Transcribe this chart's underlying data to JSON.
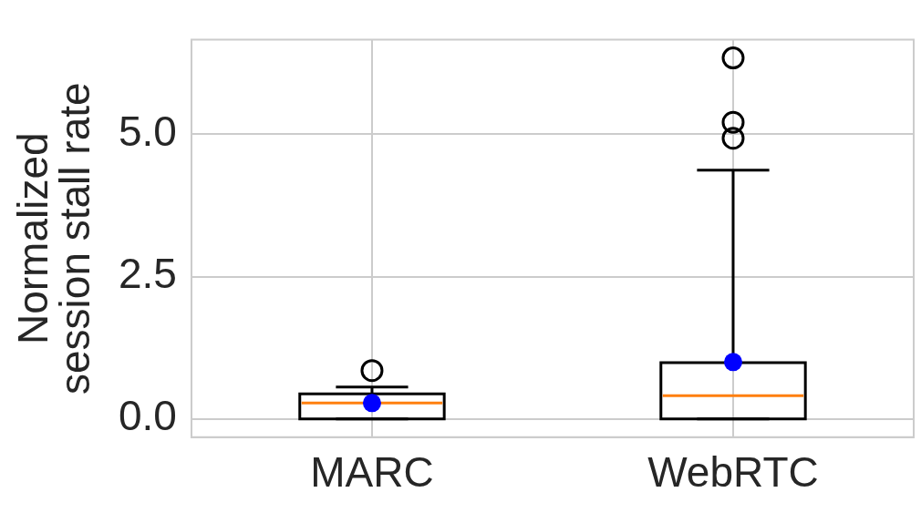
{
  "chart_data": {
    "type": "box",
    "ylabel": "Normalized\nsession stall rate",
    "categories": [
      "MARC",
      "WebRTC"
    ],
    "boxes": [
      {
        "low": 0,
        "q1": 0,
        "median": 0.28,
        "q3": 0.44,
        "high": 0.56,
        "mean": 0.28,
        "outliers": [
          0.85
        ]
      },
      {
        "low": 0,
        "q1": 0,
        "median": 0.41,
        "q3": 0.99,
        "high": 4.37,
        "mean": 1.0,
        "outliers": [
          4.93,
          5.21,
          6.34
        ]
      }
    ],
    "ylim": [
      -0.32,
      6.66
    ],
    "yticks": [
      {
        "value": 0,
        "label": "0.0"
      },
      {
        "value": 2.5,
        "label": "2.5"
      },
      {
        "value": 5,
        "label": "5.0"
      }
    ],
    "grid": true
  }
}
